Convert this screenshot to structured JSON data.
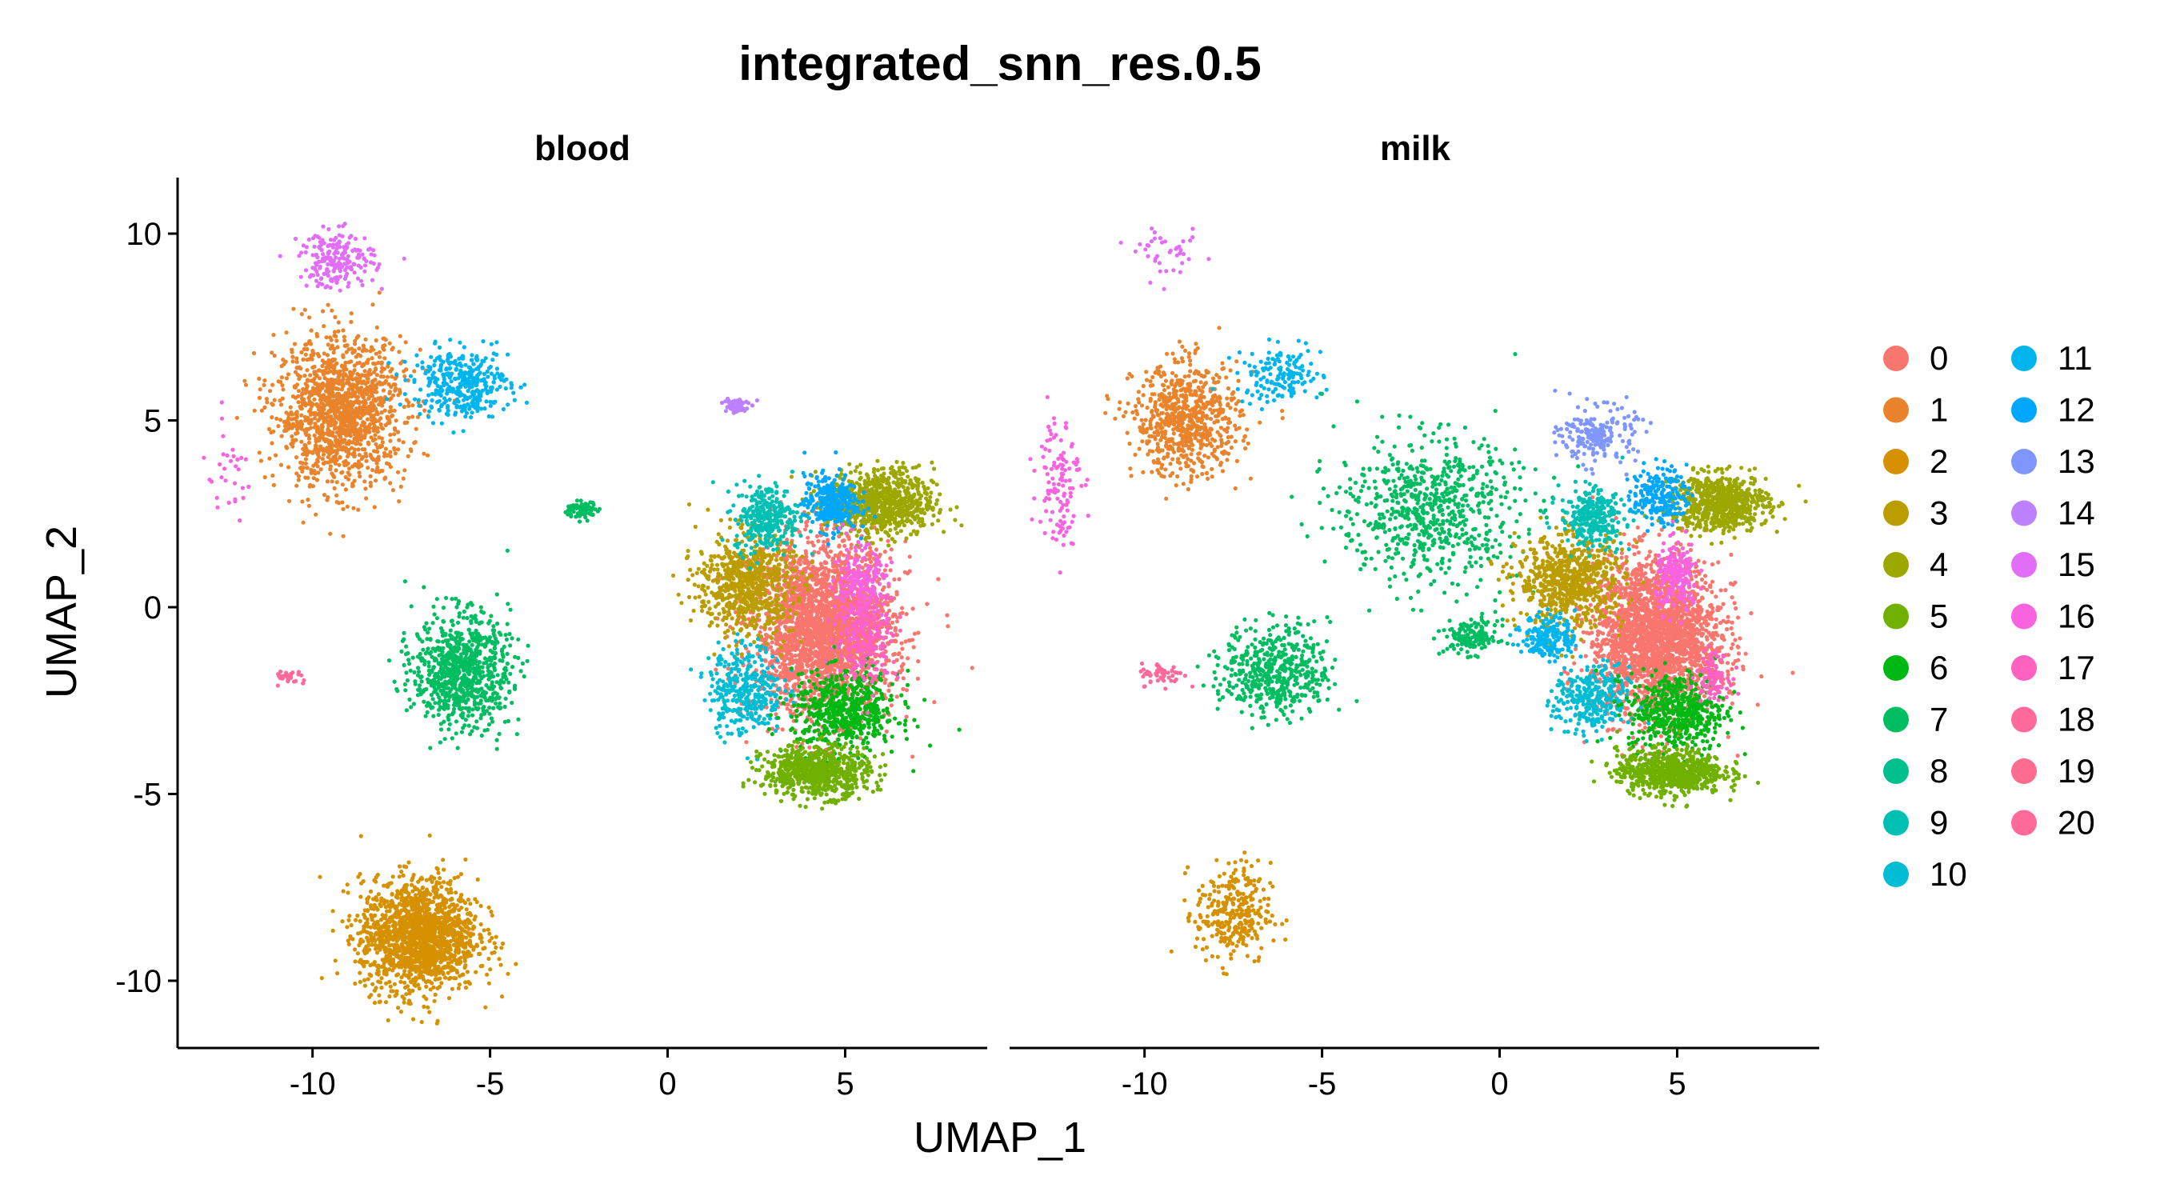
{
  "chart_data": {
    "type": "scatter",
    "title": "integrated_snn_res.0.5",
    "xlabel": "UMAP_1",
    "ylabel": "UMAP_2",
    "xlim": [
      -13.8,
      9
    ],
    "ylim": [
      -11.8,
      11.5
    ],
    "xticks": [
      -10,
      -5,
      0,
      5
    ],
    "yticks": [
      -10,
      -5,
      0,
      5,
      10
    ],
    "xtick_labels": [
      "-10",
      "-5",
      "0",
      "5"
    ],
    "ytick_labels": [
      "-10",
      "-5",
      "0",
      "5",
      "10"
    ],
    "grid": false,
    "legend_position": "right",
    "facets": [
      "blood",
      "milk"
    ],
    "clusters": [
      {
        "name": "0",
        "color": "#F8766D"
      },
      {
        "name": "1",
        "color": "#E9842C"
      },
      {
        "name": "2",
        "color": "#D69100"
      },
      {
        "name": "3",
        "color": "#BC9D00"
      },
      {
        "name": "4",
        "color": "#9CA700"
      },
      {
        "name": "5",
        "color": "#6FB000"
      },
      {
        "name": "6",
        "color": "#00B813"
      },
      {
        "name": "7",
        "color": "#00BD61"
      },
      {
        "name": "8",
        "color": "#00C08E"
      },
      {
        "name": "9",
        "color": "#00C0B4"
      },
      {
        "name": "10",
        "color": "#00BDD4"
      },
      {
        "name": "11",
        "color": "#00B5EE"
      },
      {
        "name": "12",
        "color": "#00A7FF"
      },
      {
        "name": "13",
        "color": "#7F96FF"
      },
      {
        "name": "14",
        "color": "#BC81FF"
      },
      {
        "name": "15",
        "color": "#E26EF7"
      },
      {
        "name": "16",
        "color": "#F863DF"
      },
      {
        "name": "17",
        "color": "#FF62BF"
      },
      {
        "name": "18",
        "color": "#FF6A9A"
      },
      {
        "name": "19",
        "color": "#FF6C91"
      },
      {
        "name": "20",
        "color": "#FF6A98"
      }
    ],
    "groups": {
      "blood": [
        {
          "cluster": "1",
          "cx": -9.2,
          "cy": 5.2,
          "sx": 1.2,
          "sy": 1.3,
          "n": 1400
        },
        {
          "cluster": "15",
          "cx": -9.3,
          "cy": 9.3,
          "sx": 0.7,
          "sy": 0.5,
          "n": 200
        },
        {
          "cluster": "11",
          "cx": -5.8,
          "cy": 6.0,
          "sx": 0.9,
          "sy": 0.6,
          "n": 380
        },
        {
          "cluster": "14",
          "cx": 1.9,
          "cy": 5.4,
          "sx": 0.25,
          "sy": 0.15,
          "n": 60
        },
        {
          "cluster": "7",
          "cx": -2.4,
          "cy": 2.6,
          "sx": 0.3,
          "sy": 0.15,
          "n": 80
        },
        {
          "cluster": "7",
          "cx": -5.8,
          "cy": -1.7,
          "sx": 0.9,
          "sy": 1.0,
          "n": 850
        },
        {
          "cluster": "2",
          "cx": -7.0,
          "cy": -8.8,
          "sx": 1.1,
          "sy": 1.0,
          "n": 1600
        },
        {
          "cluster": "18",
          "cx": -10.6,
          "cy": -1.9,
          "sx": 0.3,
          "sy": 0.15,
          "n": 30
        },
        {
          "cluster": "16",
          "cx": -12.4,
          "cy": 3.5,
          "sx": 0.5,
          "sy": 0.8,
          "n": 30
        },
        {
          "cluster": "0",
          "cx": 4.4,
          "cy": -0.6,
          "sx": 1.3,
          "sy": 1.5,
          "n": 2600
        },
        {
          "cluster": "3",
          "cx": 2.2,
          "cy": 0.6,
          "sx": 0.9,
          "sy": 0.9,
          "n": 700
        },
        {
          "cluster": "4",
          "cx": 6.0,
          "cy": 2.8,
          "sx": 1.0,
          "sy": 0.6,
          "n": 800
        },
        {
          "cluster": "9",
          "cx": 2.8,
          "cy": 2.4,
          "sx": 0.6,
          "sy": 0.6,
          "n": 300
        },
        {
          "cluster": "12",
          "cx": 4.6,
          "cy": 2.8,
          "sx": 0.5,
          "sy": 0.5,
          "n": 300
        },
        {
          "cluster": "10",
          "cx": 2.2,
          "cy": -2.2,
          "sx": 0.7,
          "sy": 0.8,
          "n": 350
        },
        {
          "cluster": "6",
          "cx": 5.0,
          "cy": -2.8,
          "sx": 1.0,
          "sy": 0.7,
          "n": 600
        },
        {
          "cluster": "5",
          "cx": 4.2,
          "cy": -4.4,
          "sx": 1.0,
          "sy": 0.45,
          "n": 700
        },
        {
          "cluster": "16",
          "cx": 5.4,
          "cy": 0.4,
          "sx": 0.5,
          "sy": 0.8,
          "n": 250
        },
        {
          "cluster": "17",
          "cx": 5.6,
          "cy": -0.8,
          "sx": 0.6,
          "sy": 0.8,
          "n": 200
        }
      ],
      "milk": [
        {
          "cluster": "1",
          "cx": -8.8,
          "cy": 5.0,
          "sx": 1.0,
          "sy": 1.0,
          "n": 700
        },
        {
          "cluster": "15",
          "cx": -9.3,
          "cy": 9.4,
          "sx": 0.6,
          "sy": 0.4,
          "n": 40
        },
        {
          "cluster": "11",
          "cx": -6.2,
          "cy": 6.2,
          "sx": 0.8,
          "sy": 0.5,
          "n": 150
        },
        {
          "cluster": "16",
          "cx": -12.4,
          "cy": 3.5,
          "sx": 0.4,
          "sy": 1.2,
          "n": 120
        },
        {
          "cluster": "7",
          "cx": -2.0,
          "cy": 2.6,
          "sx": 1.7,
          "sy": 1.3,
          "n": 700
        },
        {
          "cluster": "7",
          "cx": -6.3,
          "cy": -1.7,
          "sx": 1.0,
          "sy": 0.8,
          "n": 500
        },
        {
          "cluster": "2",
          "cx": -7.5,
          "cy": -8.2,
          "sx": 0.7,
          "sy": 0.9,
          "n": 300
        },
        {
          "cluster": "18",
          "cx": -9.5,
          "cy": -1.8,
          "sx": 0.4,
          "sy": 0.2,
          "n": 60
        },
        {
          "cluster": "0",
          "cx": 4.4,
          "cy": -0.8,
          "sx": 1.2,
          "sy": 1.4,
          "n": 2400
        },
        {
          "cluster": "3",
          "cx": 2.0,
          "cy": 0.7,
          "sx": 1.0,
          "sy": 0.8,
          "n": 700
        },
        {
          "cluster": "4",
          "cx": 6.2,
          "cy": 2.8,
          "sx": 0.9,
          "sy": 0.5,
          "n": 700
        },
        {
          "cluster": "13",
          "cx": 2.8,
          "cy": 4.6,
          "sx": 0.7,
          "sy": 0.5,
          "n": 200
        },
        {
          "cluster": "9",
          "cx": 2.6,
          "cy": 2.4,
          "sx": 0.6,
          "sy": 0.5,
          "n": 300
        },
        {
          "cluster": "12",
          "cx": 4.5,
          "cy": 3.0,
          "sx": 0.5,
          "sy": 0.5,
          "n": 200
        },
        {
          "cluster": "11",
          "cx": 1.4,
          "cy": -0.8,
          "sx": 0.5,
          "sy": 0.4,
          "n": 200
        },
        {
          "cluster": "10",
          "cx": 2.6,
          "cy": -2.5,
          "sx": 0.7,
          "sy": 0.6,
          "n": 300
        },
        {
          "cluster": "6",
          "cx": 5.0,
          "cy": -2.8,
          "sx": 0.9,
          "sy": 0.7,
          "n": 500
        },
        {
          "cluster": "5",
          "cx": 4.8,
          "cy": -4.4,
          "sx": 1.0,
          "sy": 0.4,
          "n": 700
        },
        {
          "cluster": "16",
          "cx": 5.0,
          "cy": 0.8,
          "sx": 0.4,
          "sy": 0.6,
          "n": 200
        },
        {
          "cluster": "17",
          "cx": 6.0,
          "cy": -1.8,
          "sx": 0.3,
          "sy": 0.4,
          "n": 100
        },
        {
          "cluster": "7",
          "cx": -0.8,
          "cy": -0.8,
          "sx": 0.5,
          "sy": 0.3,
          "n": 150
        }
      ]
    }
  }
}
